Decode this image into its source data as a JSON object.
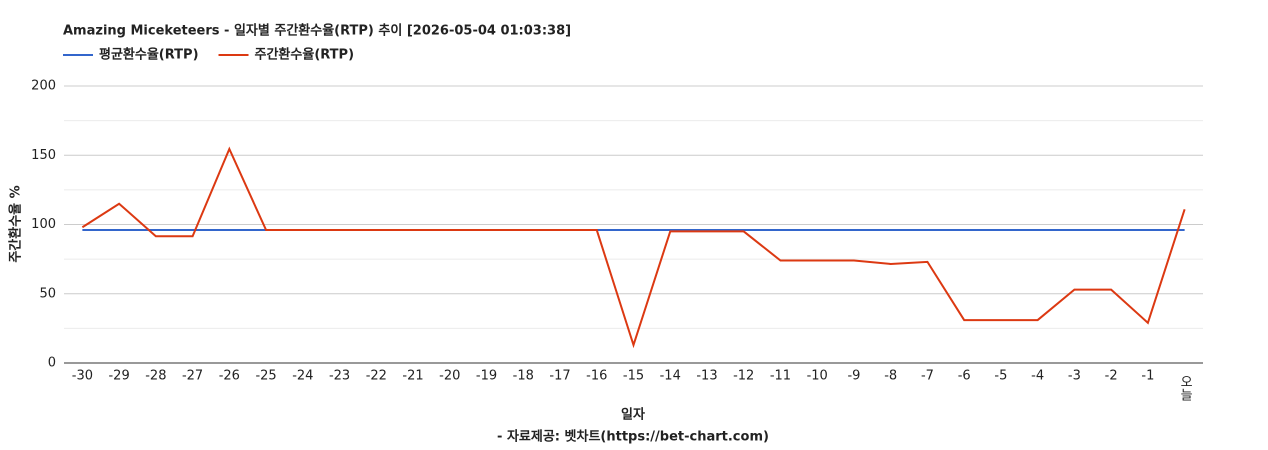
{
  "chart_data": {
    "type": "line",
    "title": "Amazing Miceketeers - 일자별 주간환수율(RTP) 추이 [2026-05-04 01:03:38]",
    "x_label": "일자",
    "y_label": "주간환수율 %",
    "source": "- 자료제공: 벳차트(https://bet-chart.com)",
    "categories": [
      "-30",
      "-29",
      "-28",
      "-27",
      "-26",
      "-25",
      "-24",
      "-23",
      "-22",
      "-21",
      "-20",
      "-19",
      "-18",
      "-17",
      "-16",
      "-15",
      "-14",
      "-13",
      "-12",
      "-11",
      "-10",
      "-9",
      "-8",
      "-7",
      "-6",
      "-5",
      "-4",
      "-3",
      "-2",
      "-1",
      "오늘"
    ],
    "series": [
      {
        "name": "평균환수율(RTP)",
        "color": "#3366cc",
        "values": [
          96,
          96,
          96,
          96,
          96,
          96,
          96,
          96,
          96,
          96,
          96,
          96,
          96,
          96,
          96,
          96,
          96,
          96,
          96,
          96,
          96,
          96,
          96,
          96,
          96,
          96,
          96,
          96,
          96,
          96,
          96
        ]
      },
      {
        "name": "주간환수율(RTP)",
        "color": "#dc3912",
        "values": [
          98,
          115,
          91.5,
          91.5,
          154.5,
          96,
          96,
          96,
          96,
          96,
          96,
          96,
          96,
          96,
          96,
          13,
          95,
          95,
          95,
          74,
          74,
          74,
          71.5,
          73,
          31,
          31,
          31,
          53,
          53,
          29,
          111
        ]
      }
    ],
    "ylim": [
      0,
      200
    ],
    "yticks": [
      0,
      50,
      100,
      150,
      200
    ],
    "minor_yticks": [
      25,
      75,
      125,
      175
    ],
    "grid": true,
    "legend": "top"
  }
}
